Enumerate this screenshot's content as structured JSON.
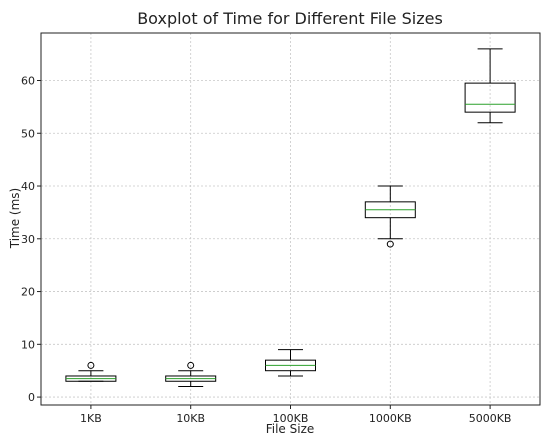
{
  "chart_data": {
    "type": "boxplot",
    "title": "Boxplot of Time for Different File Sizes",
    "xlabel": "File Size",
    "ylabel": "Time (ms)",
    "ylim": [
      -1.5,
      69
    ],
    "yticks": [
      0,
      10,
      20,
      30,
      40,
      50,
      60
    ],
    "grid": true,
    "categories": [
      "1KB",
      "10KB",
      "100KB",
      "1000KB",
      "5000KB"
    ],
    "boxes": [
      {
        "label": "1KB",
        "whislo": 3,
        "q1": 3,
        "med": 3.5,
        "q3": 4,
        "whishi": 5,
        "fliers": [
          6
        ]
      },
      {
        "label": "10KB",
        "whislo": 2,
        "q1": 3,
        "med": 3.5,
        "q3": 4,
        "whishi": 5,
        "fliers": [
          6
        ]
      },
      {
        "label": "100KB",
        "whislo": 4,
        "q1": 5,
        "med": 6,
        "q3": 7,
        "whishi": 9,
        "fliers": []
      },
      {
        "label": "1000KB",
        "whislo": 30,
        "q1": 34,
        "med": 35.5,
        "q3": 37,
        "whishi": 40,
        "fliers": [
          29
        ]
      },
      {
        "label": "5000KB",
        "whislo": 52,
        "q1": 54,
        "med": 55.5,
        "q3": 59.5,
        "whishi": 66,
        "fliers": []
      }
    ],
    "median_color": "#2ca02c"
  }
}
